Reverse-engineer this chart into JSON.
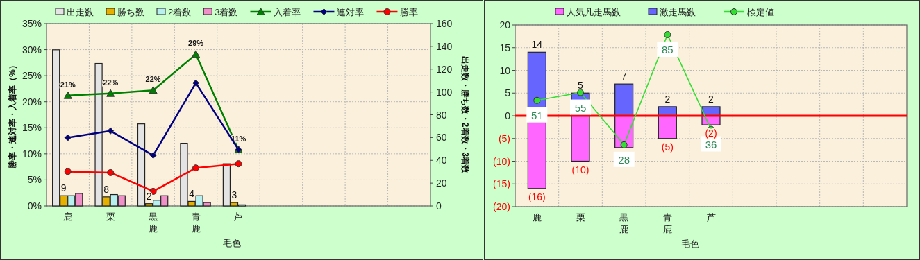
{
  "chart_data": [
    {
      "type": "bar",
      "xlabel": "毛色",
      "ylabel": "勝率・連対率・入着率（%）",
      "y2label": "出走数・勝ち数・2着数・3着数",
      "categories": [
        "鹿",
        "栗",
        "黒鹿",
        "青鹿",
        "芦",
        null,
        null,
        null,
        null
      ],
      "ylim": [
        0,
        35
      ],
      "yticks": [
        {
          "value": 0,
          "label": "0%"
        },
        {
          "value": 5,
          "label": "5%"
        },
        {
          "value": 10,
          "label": "10%"
        },
        {
          "value": 15,
          "label": "15%"
        },
        {
          "value": 20,
          "label": "20%"
        },
        {
          "value": 25,
          "label": "25%"
        },
        {
          "value": 30,
          "label": "30%"
        },
        {
          "value": 35,
          "label": "35%"
        }
      ],
      "y2lim": [
        0,
        160
      ],
      "y2ticks": [
        0,
        20,
        40,
        60,
        80,
        100,
        120,
        140,
        160
      ],
      "grid": true,
      "legend": "top",
      "series": [
        {
          "name": "出走数",
          "axis": "y2",
          "color": "#e4e4e4",
          "values": [
            137,
            125,
            72,
            55,
            37,
            null,
            null,
            null,
            null
          ]
        },
        {
          "name": "勝ち数",
          "axis": "y2",
          "color": "#e6b000",
          "values": [
            9,
            8,
            2,
            4,
            3,
            null,
            null,
            null,
            null
          ],
          "value_labels": [
            "9",
            "8",
            "2",
            "4",
            "3",
            null,
            null,
            null,
            null
          ]
        },
        {
          "name": "2着数",
          "axis": "y2",
          "color": "#b8f0f0",
          "values": [
            9,
            10,
            5,
            9,
            1,
            null,
            null,
            null,
            null
          ]
        },
        {
          "name": "3着数",
          "axis": "y2",
          "color": "#f090c8",
          "values": [
            11,
            9,
            9,
            3,
            0,
            null,
            null,
            null,
            null
          ]
        },
        {
          "name": "入着率",
          "type": "line",
          "color": "#008000",
          "marker": "triangle",
          "values": [
            21.2,
            21.6,
            22.2,
            29.1,
            10.8,
            null,
            null,
            null,
            null
          ],
          "value_labels": [
            "21%",
            "22%",
            "22%",
            "29%",
            "11%",
            null,
            null,
            null,
            null
          ]
        },
        {
          "name": "連対率",
          "type": "line",
          "color": "#000080",
          "marker": "diamond",
          "values": [
            13.1,
            14.4,
            9.7,
            23.6,
            10.8,
            null,
            null,
            null,
            null
          ]
        },
        {
          "name": "勝率",
          "type": "line",
          "color": "#ff0000",
          "marker": "circle",
          "values": [
            6.6,
            6.4,
            2.8,
            7.3,
            8.1,
            null,
            null,
            null,
            null
          ]
        }
      ]
    },
    {
      "type": "bar",
      "stacked": true,
      "xlabel": "毛色",
      "categories": [
        "鹿",
        "栗",
        "黒鹿",
        "青鹿",
        "芦",
        null,
        null,
        null,
        null
      ],
      "ylim": [
        -20,
        20
      ],
      "yticks": [
        {
          "value": -20,
          "label": "(20)"
        },
        {
          "value": -15,
          "label": "(15)"
        },
        {
          "value": -10,
          "label": "(10)"
        },
        {
          "value": -5,
          "label": "(5)"
        },
        0,
        5,
        10,
        15,
        20
      ],
      "y2lim": [
        -4,
        90
      ],
      "grid": true,
      "legend": "top",
      "ref_lines": [
        {
          "axis": "y",
          "value": 0,
          "color": "#ff0000"
        }
      ],
      "series": [
        {
          "name": "人気凡走馬数",
          "color": "#ff66ff",
          "values": [
            -16,
            -10,
            -7,
            -5,
            -2,
            null,
            null,
            null,
            null
          ],
          "value_labels": [
            "(16)",
            "(10)",
            null,
            "(5)",
            "(2)",
            null,
            null,
            null,
            null
          ]
        },
        {
          "name": "激走馬数",
          "color": "#6666ff",
          "values": [
            14,
            5,
            7,
            2,
            2,
            null,
            null,
            null,
            null
          ],
          "value_labels": [
            "14",
            "5",
            "7",
            "2",
            "2",
            null,
            null,
            null,
            null
          ]
        },
        {
          "name": "検定値",
          "type": "line",
          "axis": "y2",
          "color": "#33dd33",
          "marker": "circle",
          "values": [
            51,
            55,
            28,
            85,
            36,
            null,
            null,
            null,
            null
          ],
          "value_labels": [
            "51",
            "55",
            "28",
            "85",
            "36",
            null,
            null,
            null,
            null
          ]
        }
      ]
    }
  ]
}
